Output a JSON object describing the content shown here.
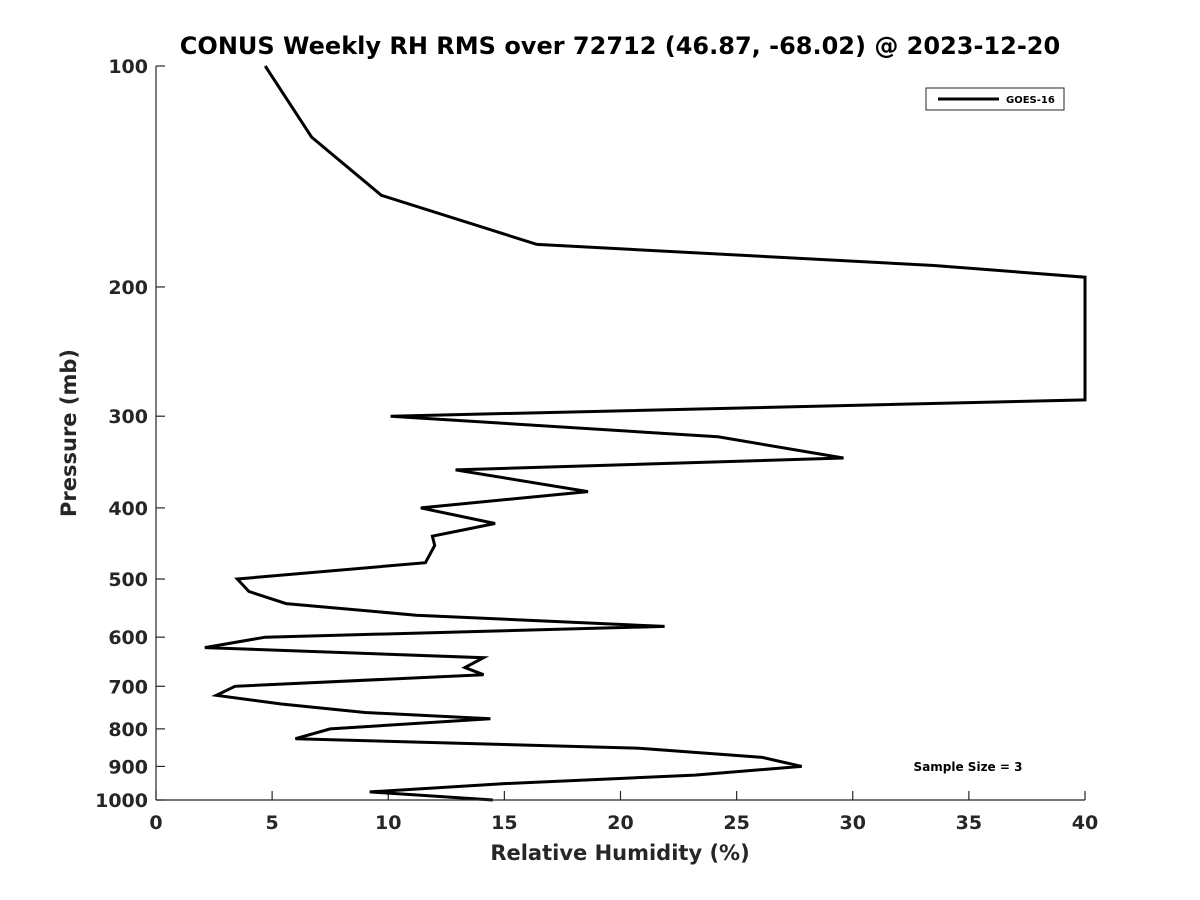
{
  "chart_data": {
    "type": "line",
    "title": "CONUS Weekly RH RMS over 72712 (46.87, -68.02) @ 2023-12-20",
    "xlabel": "Relative Humidity (%)",
    "ylabel": "Pressure (mb)",
    "xlim": [
      0,
      40
    ],
    "ylim": [
      100,
      1000
    ],
    "y_scale": "log",
    "y_reversed": true,
    "xticks": [
      0,
      5,
      10,
      15,
      20,
      25,
      30,
      35,
      40
    ],
    "yticks": [
      100,
      200,
      300,
      400,
      500,
      600,
      700,
      800,
      900,
      1000
    ],
    "grid": false,
    "legend_position": "top-right",
    "series": [
      {
        "name": "GOES-16",
        "color": "#000000",
        "points": [
          [
            4.7,
            100
          ],
          [
            6.7,
            125
          ],
          [
            9.7,
            150
          ],
          [
            16.4,
            175
          ],
          [
            33.5,
            187
          ],
          [
            40,
            194
          ],
          [
            40,
            285
          ],
          [
            10.1,
            300
          ],
          [
            24.2,
            320
          ],
          [
            29.6,
            342
          ],
          [
            12.9,
            355
          ],
          [
            18.6,
            380
          ],
          [
            11.4,
            400
          ],
          [
            14.6,
            420
          ],
          [
            11.9,
            437
          ],
          [
            12.0,
            450
          ],
          [
            11.6,
            475
          ],
          [
            3.5,
            500
          ],
          [
            4.0,
            520
          ],
          [
            5.6,
            540
          ],
          [
            11.2,
            560
          ],
          [
            21.9,
            580
          ],
          [
            4.7,
            600
          ],
          [
            2.1,
            620
          ],
          [
            14.1,
            640
          ],
          [
            13.3,
            660
          ],
          [
            14.1,
            675
          ],
          [
            3.4,
            700
          ],
          [
            2.6,
            720
          ],
          [
            5.4,
            740
          ],
          [
            9.0,
            760
          ],
          [
            14.4,
            775
          ],
          [
            7.5,
            800
          ],
          [
            6.0,
            825
          ],
          [
            20.8,
            850
          ],
          [
            26.1,
            875
          ],
          [
            27.8,
            900
          ],
          [
            23.2,
            925
          ],
          [
            15.0,
            950
          ],
          [
            9.2,
            975
          ],
          [
            14.5,
            1000
          ]
        ]
      }
    ],
    "annotations": [
      "Sample Size = 3"
    ]
  }
}
